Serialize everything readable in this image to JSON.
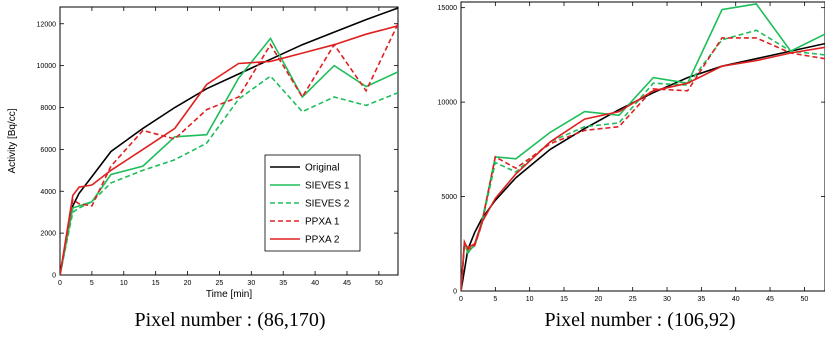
{
  "chart_data": [
    {
      "type": "line",
      "xlabel": "Time [min]",
      "ylabel": "Activity [Bq/cc]",
      "xlim": [
        0,
        53
      ],
      "ylim": [
        0,
        12800
      ],
      "xticks": [
        0,
        5,
        10,
        15,
        20,
        25,
        30,
        35,
        40,
        45,
        50
      ],
      "yticks": [
        0,
        2000,
        4000,
        6000,
        8000,
        10000,
        12000
      ],
      "grid": false,
      "legend_position": "bottom-right",
      "caption": "Pixel number : (86,170)",
      "series": [
        {
          "name": "Original",
          "color": "#000000",
          "dash": "solid",
          "x": [
            0,
            2,
            3,
            5,
            8,
            13,
            18,
            23,
            28,
            33,
            38,
            43,
            48,
            53
          ],
          "y": [
            0,
            3300,
            3900,
            4700,
            5900,
            7000,
            8000,
            8900,
            9600,
            10300,
            11000,
            11600,
            12200,
            12750
          ]
        },
        {
          "name": "SIEVES 1",
          "color": "#1fbe5a",
          "dash": "solid",
          "x": [
            0,
            2,
            3,
            5,
            8,
            13,
            18,
            23,
            28,
            33,
            38,
            43,
            48,
            53
          ],
          "y": [
            0,
            3200,
            3300,
            3500,
            4800,
            5200,
            6600,
            6700,
            9400,
            11300,
            8500,
            10000,
            9000,
            9700
          ]
        },
        {
          "name": "SIEVES 2",
          "color": "#1fbe5a",
          "dash": "dashed",
          "x": [
            0,
            2,
            3,
            5,
            8,
            13,
            18,
            23,
            28,
            33,
            38,
            43,
            48,
            53
          ],
          "y": [
            0,
            3000,
            3200,
            3500,
            4400,
            5000,
            5500,
            6300,
            8400,
            9500,
            7800,
            8500,
            8100,
            8700
          ]
        },
        {
          "name": "PPXA 1",
          "color": "#e02020",
          "dash": "dashed",
          "x": [
            0,
            2,
            3,
            5,
            8,
            13,
            18,
            23,
            28,
            33,
            38,
            43,
            48,
            53
          ],
          "y": [
            0,
            3600,
            3400,
            3300,
            5200,
            6900,
            6500,
            7900,
            8500,
            11000,
            8500,
            11000,
            8800,
            12000
          ]
        },
        {
          "name": "PPXA 2",
          "color": "#e02020",
          "dash": "solid",
          "x": [
            0,
            2,
            3,
            5,
            8,
            13,
            18,
            23,
            28,
            33,
            38,
            43,
            48,
            53
          ],
          "y": [
            0,
            3800,
            4200,
            4300,
            5000,
            6000,
            7000,
            9100,
            10100,
            10200,
            10600,
            11000,
            11500,
            11900
          ]
        }
      ]
    },
    {
      "type": "line",
      "xlim": [
        0,
        53
      ],
      "ylim": [
        0,
        15300
      ],
      "xticks": [
        0,
        5,
        10,
        15,
        20,
        25,
        30,
        35,
        40,
        45,
        50
      ],
      "yticks": [
        0,
        5000,
        10000,
        15000
      ],
      "grid": false,
      "caption": "Pixel number : (106,92)",
      "series": [
        {
          "name": "Original",
          "color": "#000000",
          "dash": "solid",
          "x": [
            0,
            1,
            2,
            3,
            5,
            8,
            13,
            18,
            23,
            28,
            33,
            38,
            43,
            48,
            53
          ],
          "y": [
            0,
            2200,
            3100,
            3800,
            4800,
            6000,
            7500,
            8600,
            9600,
            10500,
            11300,
            11900,
            12300,
            12700,
            13100
          ]
        },
        {
          "name": "SIEVES 1",
          "color": "#1fbe5a",
          "dash": "solid",
          "x": [
            0,
            0.5,
            1,
            2,
            3,
            5,
            8,
            13,
            18,
            23,
            28,
            33,
            38,
            43,
            48,
            53
          ],
          "y": [
            0,
            2600,
            2000,
            2500,
            3600,
            7100,
            7000,
            8400,
            9500,
            9300,
            11300,
            11000,
            14900,
            15200,
            12700,
            13600
          ]
        },
        {
          "name": "SIEVES 2",
          "color": "#1fbe5a",
          "dash": "dashed",
          "x": [
            0,
            0.5,
            1,
            2,
            3,
            5,
            8,
            13,
            18,
            23,
            28,
            33,
            38,
            43,
            48,
            53
          ],
          "y": [
            0,
            2400,
            2100,
            2400,
            3500,
            6800,
            6300,
            7900,
            8700,
            8900,
            11000,
            10900,
            13300,
            13800,
            12700,
            12500
          ]
        },
        {
          "name": "PPXA 1",
          "color": "#e02020",
          "dash": "dashed",
          "x": [
            0,
            0.5,
            1,
            2,
            3,
            5,
            8,
            13,
            18,
            23,
            28,
            33,
            38,
            43,
            48,
            53
          ],
          "y": [
            0,
            2600,
            2200,
            2400,
            3500,
            7100,
            6500,
            7800,
            8500,
            8700,
            10700,
            10600,
            13400,
            13400,
            12600,
            12300
          ]
        },
        {
          "name": "PPXA 2",
          "color": "#e02020",
          "dash": "solid",
          "x": [
            0,
            0.5,
            1,
            2,
            3,
            5,
            8,
            13,
            18,
            23,
            28,
            33,
            38,
            43,
            48,
            53
          ],
          "y": [
            0,
            2500,
            2300,
            2500,
            3600,
            4900,
            6200,
            7900,
            9100,
            9500,
            10600,
            11000,
            11900,
            12200,
            12600,
            12900
          ]
        }
      ]
    }
  ]
}
